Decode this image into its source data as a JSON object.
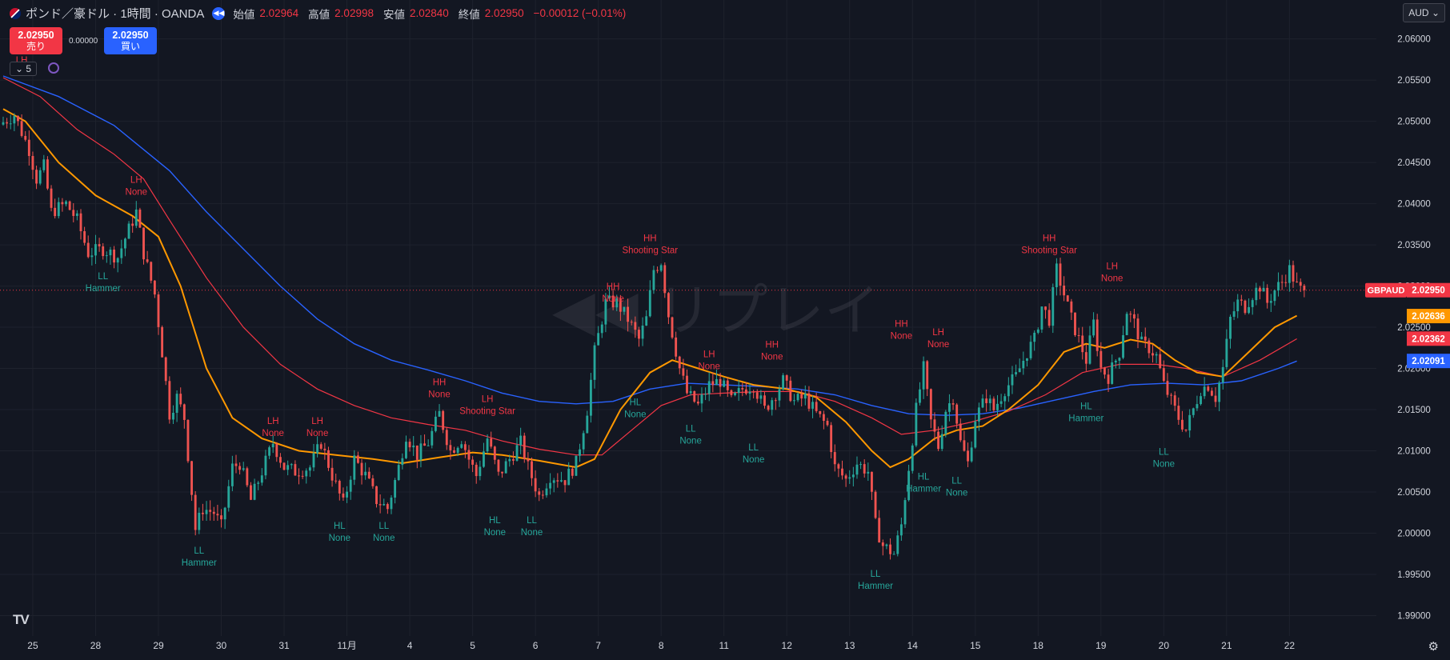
{
  "header": {
    "symbol": "ポンド／豪ドル · 1時間 · OANDA",
    "open_label": "始値",
    "open": "2.02964",
    "high_label": "高値",
    "high": "2.02998",
    "low_label": "安値",
    "low": "2.02840",
    "close_label": "終値",
    "close": "2.02950",
    "change": "−0.00012 (−0.01%)",
    "icons": [
      "flag-icon",
      "replay-icon"
    ]
  },
  "trade": {
    "sell_price": "2.02950",
    "sell_label": "売り",
    "spread": "0.00000",
    "buy_price": "2.02950",
    "buy_label": "買い"
  },
  "indicators_toggle": "5",
  "currency": "AUD",
  "watermark": "リプレイ",
  "logo": "TV",
  "colors": {
    "up": "#26a69a",
    "down": "#ef5350",
    "ema_orange": "#ff9800",
    "ema_red": "#f23645",
    "ema_blue": "#2962ff",
    "bg": "#131722",
    "grid": "#1e222d"
  },
  "chart_data": {
    "type": "candlestick",
    "symbol": "GBPAUD",
    "interval": "1h",
    "ylim": [
      1.9882,
      2.0622
    ],
    "yticks": [
      "2.06000",
      "2.05500",
      "2.05000",
      "2.04500",
      "2.04000",
      "2.03500",
      "2.03000",
      "2.02500",
      "2.02000",
      "2.01500",
      "2.01000",
      "2.00500",
      "2.00000",
      "1.99500",
      "1.99000"
    ],
    "x_range": [
      0,
      370
    ],
    "xticks": [
      {
        "x": 8,
        "label": "25"
      },
      {
        "x": 25,
        "label": "28"
      },
      {
        "x": 42,
        "label": "29"
      },
      {
        "x": 59,
        "label": "30"
      },
      {
        "x": 76,
        "label": "31"
      },
      {
        "x": 93,
        "label": "11月"
      },
      {
        "x": 110,
        "label": "4"
      },
      {
        "x": 127,
        "label": "5"
      },
      {
        "x": 144,
        "label": "6"
      },
      {
        "x": 161,
        "label": "7"
      },
      {
        "x": 178,
        "label": "8"
      },
      {
        "x": 195,
        "label": "11"
      },
      {
        "x": 212,
        "label": "12"
      },
      {
        "x": 229,
        "label": "13"
      },
      {
        "x": 246,
        "label": "14"
      },
      {
        "x": 263,
        "label": "15"
      },
      {
        "x": 280,
        "label": "18"
      },
      {
        "x": 297,
        "label": "19"
      },
      {
        "x": 314,
        "label": "20"
      },
      {
        "x": 331,
        "label": "21"
      },
      {
        "x": 348,
        "label": "22"
      }
    ],
    "price_anchors": [
      [
        0,
        2.0496
      ],
      [
        4,
        2.0508
      ],
      [
        8,
        2.0466
      ],
      [
        10,
        2.043
      ],
      [
        12,
        2.0445
      ],
      [
        14,
        2.039
      ],
      [
        18,
        2.04
      ],
      [
        21,
        2.038
      ],
      [
        24,
        2.034
      ],
      [
        28,
        2.0345
      ],
      [
        32,
        2.0335
      ],
      [
        34,
        2.0358
      ],
      [
        37,
        2.039
      ],
      [
        39,
        2.034
      ],
      [
        42,
        2.029
      ],
      [
        44,
        2.022
      ],
      [
        46,
        2.0145
      ],
      [
        48,
        2.0165
      ],
      [
        50,
        2.014
      ],
      [
        53,
        2.0005
      ],
      [
        55,
        2.003
      ],
      [
        58,
        2.0025
      ],
      [
        60,
        2.0008
      ],
      [
        63,
        2.008
      ],
      [
        65,
        2.0085
      ],
      [
        68,
        2.004
      ],
      [
        71,
        2.0075
      ],
      [
        74,
        2.011
      ],
      [
        77,
        2.008
      ],
      [
        80,
        2.0075
      ],
      [
        84,
        2.008
      ],
      [
        87,
        2.011
      ],
      [
        90,
        2.007
      ],
      [
        93,
        2.0035
      ],
      [
        96,
        2.009
      ],
      [
        99,
        2.007
      ],
      [
        102,
        2.004
      ],
      [
        105,
        2.003
      ],
      [
        108,
        2.008
      ],
      [
        110,
        2.012
      ],
      [
        113,
        2.0095
      ],
      [
        116,
        2.011
      ],
      [
        119,
        2.0145
      ],
      [
        122,
        2.01
      ],
      [
        125,
        2.0115
      ],
      [
        127,
        2.009
      ],
      [
        129,
        2.007
      ],
      [
        132,
        2.0115
      ],
      [
        135,
        2.007
      ],
      [
        138,
        2.009
      ],
      [
        141,
        2.011
      ],
      [
        143,
        2.008
      ],
      [
        146,
        2.0045
      ],
      [
        149,
        2.007
      ],
      [
        153,
        2.0065
      ],
      [
        156,
        2.0085
      ],
      [
        159,
        2.015
      ],
      [
        161,
        2.022
      ],
      [
        164,
        2.028
      ],
      [
        167,
        2.028
      ],
      [
        170,
        2.026
      ],
      [
        173,
        2.0235
      ],
      [
        175,
        2.026
      ],
      [
        177,
        2.032
      ],
      [
        179,
        2.033
      ],
      [
        181,
        2.0265
      ],
      [
        184,
        2.02
      ],
      [
        186,
        2.017
      ],
      [
        189,
        2.0155
      ],
      [
        192,
        2.018
      ],
      [
        195,
        2.0185
      ],
      [
        198,
        2.016
      ],
      [
        201,
        2.0175
      ],
      [
        204,
        2.018
      ],
      [
        207,
        2.015
      ],
      [
        210,
        2.017
      ],
      [
        212,
        2.0185
      ],
      [
        215,
        2.016
      ],
      [
        218,
        2.0165
      ],
      [
        221,
        2.0145
      ],
      [
        224,
        2.013
      ],
      [
        226,
        2.008
      ],
      [
        229,
        2.0065
      ],
      [
        232,
        2.0085
      ],
      [
        235,
        2.0075
      ],
      [
        237,
        2.001
      ],
      [
        239,
        1.9985
      ],
      [
        242,
        1.9975
      ],
      [
        244,
        2.001
      ],
      [
        246,
        2.008
      ],
      [
        248,
        2.015
      ],
      [
        250,
        2.02
      ],
      [
        252,
        2.0135
      ],
      [
        254,
        2.0105
      ],
      [
        256,
        2.015
      ],
      [
        258,
        2.0165
      ],
      [
        260,
        2.011
      ],
      [
        262,
        2.0085
      ],
      [
        264,
        2.014
      ],
      [
        267,
        2.0165
      ],
      [
        269,
        2.015
      ],
      [
        272,
        2.0175
      ],
      [
        275,
        2.019
      ],
      [
        278,
        2.022
      ],
      [
        280,
        2.0235
      ],
      [
        282,
        2.0275
      ],
      [
        284,
        2.026
      ],
      [
        286,
        2.032
      ],
      [
        288,
        2.029
      ],
      [
        290,
        2.026
      ],
      [
        292,
        2.0235
      ],
      [
        294,
        2.021
      ],
      [
        296,
        2.0255
      ],
      [
        298,
        2.02
      ],
      [
        300,
        2.019
      ],
      [
        303,
        2.022
      ],
      [
        305,
        2.027
      ],
      [
        307,
        2.0255
      ],
      [
        309,
        2.023
      ],
      [
        311,
        2.0225
      ],
      [
        313,
        2.0215
      ],
      [
        315,
        2.018
      ],
      [
        317,
        2.016
      ],
      [
        319,
        2.014
      ],
      [
        321,
        2.0125
      ],
      [
        323,
        2.015
      ],
      [
        325,
        2.0175
      ],
      [
        327,
        2.018
      ],
      [
        329,
        2.0165
      ],
      [
        331,
        2.02
      ],
      [
        333,
        2.026
      ],
      [
        335,
        2.028
      ],
      [
        337,
        2.0275
      ],
      [
        339,
        2.029
      ],
      [
        341,
        2.03
      ],
      [
        343,
        2.028
      ],
      [
        345,
        2.0295
      ],
      [
        347,
        2.0305
      ],
      [
        349,
        2.032
      ],
      [
        351,
        2.03
      ],
      [
        352,
        2.0295
      ]
    ],
    "ema_orange": [
      [
        0,
        2.0515
      ],
      [
        6,
        2.05
      ],
      [
        15,
        2.045
      ],
      [
        25,
        2.041
      ],
      [
        35,
        2.0385
      ],
      [
        42,
        2.036
      ],
      [
        48,
        2.03
      ],
      [
        55,
        2.02
      ],
      [
        62,
        2.014
      ],
      [
        70,
        2.0115
      ],
      [
        80,
        2.01
      ],
      [
        90,
        2.0095
      ],
      [
        100,
        2.009
      ],
      [
        108,
        2.0085
      ],
      [
        118,
        2.0092
      ],
      [
        127,
        2.0098
      ],
      [
        135,
        2.0095
      ],
      [
        145,
        2.0088
      ],
      [
        155,
        2.008
      ],
      [
        160,
        2.009
      ],
      [
        167,
        2.015
      ],
      [
        175,
        2.0195
      ],
      [
        181,
        2.021
      ],
      [
        188,
        2.02
      ],
      [
        195,
        2.019
      ],
      [
        203,
        2.018
      ],
      [
        212,
        2.0175
      ],
      [
        220,
        2.0165
      ],
      [
        228,
        2.0135
      ],
      [
        235,
        2.01
      ],
      [
        240,
        2.008
      ],
      [
        245,
        2.009
      ],
      [
        252,
        2.0115
      ],
      [
        258,
        2.0125
      ],
      [
        265,
        2.013
      ],
      [
        272,
        2.015
      ],
      [
        280,
        2.018
      ],
      [
        287,
        2.022
      ],
      [
        293,
        2.023
      ],
      [
        298,
        2.0225
      ],
      [
        305,
        2.0235
      ],
      [
        311,
        2.023
      ],
      [
        317,
        2.021
      ],
      [
        323,
        2.0195
      ],
      [
        330,
        2.019
      ],
      [
        337,
        2.022
      ],
      [
        344,
        2.025
      ],
      [
        350,
        2.0264
      ]
    ],
    "ema_red": [
      [
        0,
        2.0553
      ],
      [
        10,
        2.053
      ],
      [
        20,
        2.049
      ],
      [
        30,
        2.046
      ],
      [
        38,
        2.043
      ],
      [
        45,
        2.038
      ],
      [
        55,
        2.031
      ],
      [
        65,
        2.025
      ],
      [
        75,
        2.0205
      ],
      [
        85,
        2.0175
      ],
      [
        95,
        2.0155
      ],
      [
        105,
        2.014
      ],
      [
        115,
        2.0132
      ],
      [
        125,
        2.0125
      ],
      [
        135,
        2.0112
      ],
      [
        145,
        2.0102
      ],
      [
        155,
        2.0095
      ],
      [
        162,
        2.0095
      ],
      [
        170,
        2.0125
      ],
      [
        178,
        2.0155
      ],
      [
        186,
        2.0168
      ],
      [
        195,
        2.017
      ],
      [
        205,
        2.0172
      ],
      [
        215,
        2.0172
      ],
      [
        225,
        2.016
      ],
      [
        235,
        2.014
      ],
      [
        243,
        2.012
      ],
      [
        252,
        2.0125
      ],
      [
        262,
        2.0135
      ],
      [
        272,
        2.0148
      ],
      [
        282,
        2.0168
      ],
      [
        292,
        2.0195
      ],
      [
        302,
        2.0205
      ],
      [
        312,
        2.0205
      ],
      [
        320,
        2.02
      ],
      [
        330,
        2.019
      ],
      [
        340,
        2.021
      ],
      [
        350,
        2.0236
      ]
    ],
    "ema_blue": [
      [
        0,
        2.0555
      ],
      [
        15,
        2.053
      ],
      [
        30,
        2.0495
      ],
      [
        45,
        2.044
      ],
      [
        55,
        2.039
      ],
      [
        65,
        2.0345
      ],
      [
        75,
        2.03
      ],
      [
        85,
        2.026
      ],
      [
        95,
        2.023
      ],
      [
        105,
        2.021
      ],
      [
        115,
        2.0198
      ],
      [
        125,
        2.0185
      ],
      [
        135,
        2.017
      ],
      [
        145,
        2.016
      ],
      [
        155,
        2.0157
      ],
      [
        165,
        2.016
      ],
      [
        175,
        2.0175
      ],
      [
        185,
        2.0182
      ],
      [
        195,
        2.018
      ],
      [
        205,
        2.0178
      ],
      [
        215,
        2.0175
      ],
      [
        225,
        2.0168
      ],
      [
        235,
        2.0155
      ],
      [
        245,
        2.0145
      ],
      [
        255,
        2.0143
      ],
      [
        265,
        2.0145
      ],
      [
        275,
        2.0152
      ],
      [
        285,
        2.0162
      ],
      [
        295,
        2.0172
      ],
      [
        305,
        2.018
      ],
      [
        315,
        2.0182
      ],
      [
        325,
        2.018
      ],
      [
        335,
        2.0185
      ],
      [
        345,
        2.02
      ],
      [
        350,
        2.0209
      ]
    ],
    "annotations": [
      {
        "x": 5,
        "y": 2.0553,
        "top": "LH",
        "bottom": "None",
        "color": "#f23645",
        "pos": "above"
      },
      {
        "x": 36,
        "y": 2.0408,
        "top": "LH",
        "bottom": "None",
        "color": "#f23645",
        "pos": "above"
      },
      {
        "x": 27,
        "y": 2.0318,
        "top": "LL",
        "bottom": "Hammer",
        "color": "#26a69a",
        "pos": "below"
      },
      {
        "x": 53,
        "y": 1.9985,
        "top": "LL",
        "bottom": "Hammer",
        "color": "#26a69a",
        "pos": "below"
      },
      {
        "x": 73,
        "y": 2.0115,
        "top": "LH",
        "bottom": "None",
        "color": "#f23645",
        "pos": "above"
      },
      {
        "x": 85,
        "y": 2.0115,
        "top": "LH",
        "bottom": "None",
        "color": "#f23645",
        "pos": "above"
      },
      {
        "x": 91,
        "y": 2.0015,
        "top": "HL",
        "bottom": "None",
        "color": "#26a69a",
        "pos": "below"
      },
      {
        "x": 103,
        "y": 2.0015,
        "top": "LL",
        "bottom": "None",
        "color": "#26a69a",
        "pos": "below"
      },
      {
        "x": 118,
        "y": 2.0162,
        "top": "HH",
        "bottom": "None",
        "color": "#f23645",
        "pos": "above"
      },
      {
        "x": 131,
        "y": 2.0142,
        "top": "LH",
        "bottom": "Shooting Star",
        "color": "#f23645",
        "pos": "above"
      },
      {
        "x": 133,
        "y": 2.0022,
        "top": "HL",
        "bottom": "None",
        "color": "#26a69a",
        "pos": "below"
      },
      {
        "x": 143,
        "y": 2.0022,
        "top": "LL",
        "bottom": "None",
        "color": "#26a69a",
        "pos": "below"
      },
      {
        "x": 165,
        "y": 2.0278,
        "top": "HH",
        "bottom": "None",
        "color": "#f23645",
        "pos": "above"
      },
      {
        "x": 175,
        "y": 2.0337,
        "top": "HH",
        "bottom": "Shooting Star",
        "color": "#f23645",
        "pos": "above"
      },
      {
        "x": 171,
        "y": 2.0165,
        "top": "HL",
        "bottom": "None",
        "color": "#26a69a",
        "pos": "below"
      },
      {
        "x": 191,
        "y": 2.0196,
        "top": "LH",
        "bottom": "None",
        "color": "#f23645",
        "pos": "above"
      },
      {
        "x": 186,
        "y": 2.0133,
        "top": "LL",
        "bottom": "None",
        "color": "#26a69a",
        "pos": "below"
      },
      {
        "x": 208,
        "y": 2.0208,
        "top": "HH",
        "bottom": "None",
        "color": "#f23645",
        "pos": "above"
      },
      {
        "x": 203,
        "y": 2.011,
        "top": "LL",
        "bottom": "None",
        "color": "#26a69a",
        "pos": "below"
      },
      {
        "x": 243,
        "y": 2.0233,
        "top": "HH",
        "bottom": "None",
        "color": "#f23645",
        "pos": "above"
      },
      {
        "x": 253,
        "y": 2.0223,
        "top": "LH",
        "bottom": "None",
        "color": "#f23645",
        "pos": "above"
      },
      {
        "x": 249,
        "y": 2.0075,
        "top": "HL",
        "bottom": "Hammer",
        "color": "#26a69a",
        "pos": "below"
      },
      {
        "x": 258,
        "y": 2.007,
        "top": "LL",
        "bottom": "None",
        "color": "#26a69a",
        "pos": "below"
      },
      {
        "x": 236,
        "y": 1.9957,
        "top": "LL",
        "bottom": "Hammer",
        "color": "#26a69a",
        "pos": "below"
      },
      {
        "x": 283,
        "y": 2.0337,
        "top": "HH",
        "bottom": "Shooting Star",
        "color": "#f23645",
        "pos": "above"
      },
      {
        "x": 300,
        "y": 2.0303,
        "top": "LH",
        "bottom": "None",
        "color": "#f23645",
        "pos": "above"
      },
      {
        "x": 293,
        "y": 2.016,
        "top": "HL",
        "bottom": "Hammer",
        "color": "#26a69a",
        "pos": "below"
      },
      {
        "x": 314,
        "y": 2.0105,
        "top": "LL",
        "bottom": "None",
        "color": "#26a69a",
        "pos": "below"
      }
    ],
    "last_price": {
      "label": "GBPAUD",
      "value": "2.02950",
      "y": 2.0295
    },
    "right_labels": [
      {
        "value": "2.02636",
        "y": 2.02636,
        "color": "#ff9800"
      },
      {
        "value": "2.02362",
        "y": 2.02362,
        "color": "#f23645"
      },
      {
        "value": "2.02091",
        "y": 2.02091,
        "color": "#2962ff"
      }
    ]
  }
}
